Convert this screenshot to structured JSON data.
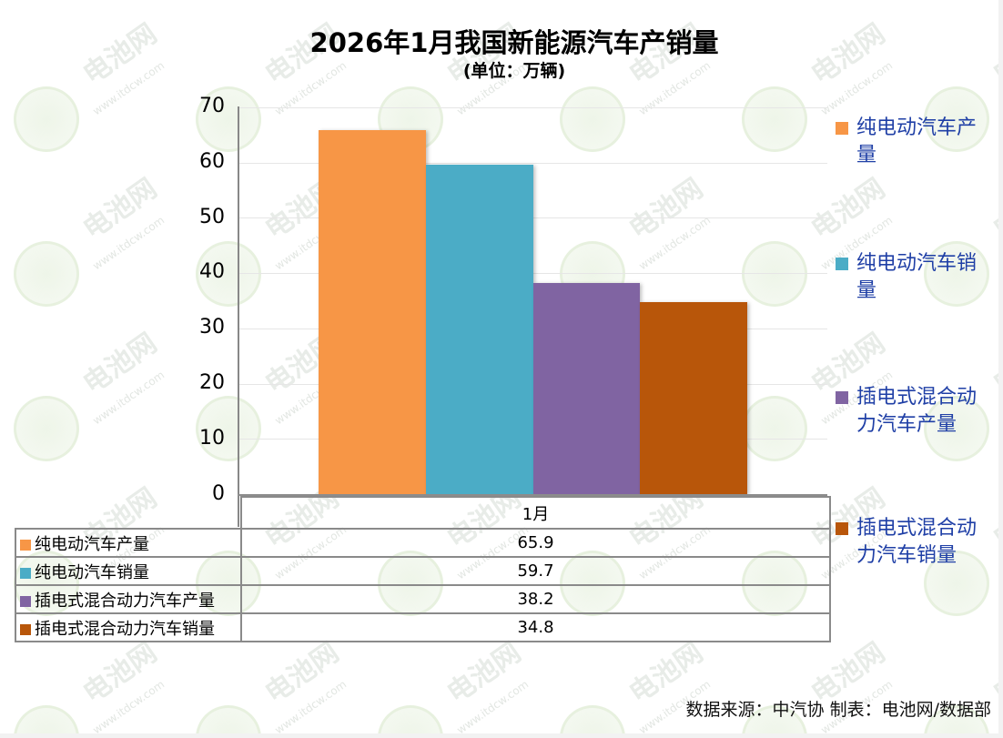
{
  "title": "2026年1月我国新能源汽车产销量",
  "subtitle": "(单位：万辆)",
  "footer": "数据来源：中汽协  制表：电池网/数据部",
  "watermark": {
    "brand": "电池网",
    "url": "www.itdcw.com"
  },
  "colors": {
    "bev_production": "#F79646",
    "bev_sales": "#4BACC6",
    "phev_production": "#8064A2",
    "phev_sales": "#B8560A",
    "legend_text": "#1F3FA6"
  },
  "chart_data": {
    "type": "bar",
    "title": "2026年1月我国新能源汽车产销量",
    "subtitle": "(单位：万辆)",
    "categories": [
      "1月"
    ],
    "series": [
      {
        "name": "纯电动汽车产量",
        "values": [
          65.9
        ],
        "color": "#F79646"
      },
      {
        "name": "纯电动汽车销量",
        "values": [
          59.7
        ],
        "color": "#4BACC6"
      },
      {
        "name": "插电式混合动力汽车产量",
        "values": [
          38.2
        ],
        "color": "#8064A2"
      },
      {
        "name": "插电式混合动力汽车销量",
        "values": [
          34.8
        ],
        "color": "#B8560A"
      }
    ],
    "xlabel": "",
    "ylabel": "",
    "ylim": [
      0,
      70
    ],
    "yticks": [
      0,
      10,
      20,
      30,
      40,
      50,
      60,
      70
    ],
    "grid": true,
    "legend_position": "right",
    "data_table": true
  },
  "yaxis": {
    "ticks": [
      "70",
      "60",
      "50",
      "40",
      "30",
      "20",
      "10",
      "0"
    ]
  },
  "table": {
    "header": "1月",
    "rows": [
      {
        "label": "纯电动汽车产量",
        "value": "65.9"
      },
      {
        "label": "纯电动汽车销量",
        "value": "59.7"
      },
      {
        "label": "插电式混合动力汽车产量",
        "value": "38.2"
      },
      {
        "label": "插电式混合动力汽车销量",
        "value": "34.8"
      }
    ]
  },
  "legend": [
    {
      "line1": "纯电动汽车产",
      "line2": "量"
    },
    {
      "line1": "纯电动汽车销",
      "line2": "量"
    },
    {
      "line1": "插电式混合动",
      "line2": "力汽车产量"
    },
    {
      "line1": "插电式混合动",
      "line2": "力汽车销量"
    }
  ]
}
